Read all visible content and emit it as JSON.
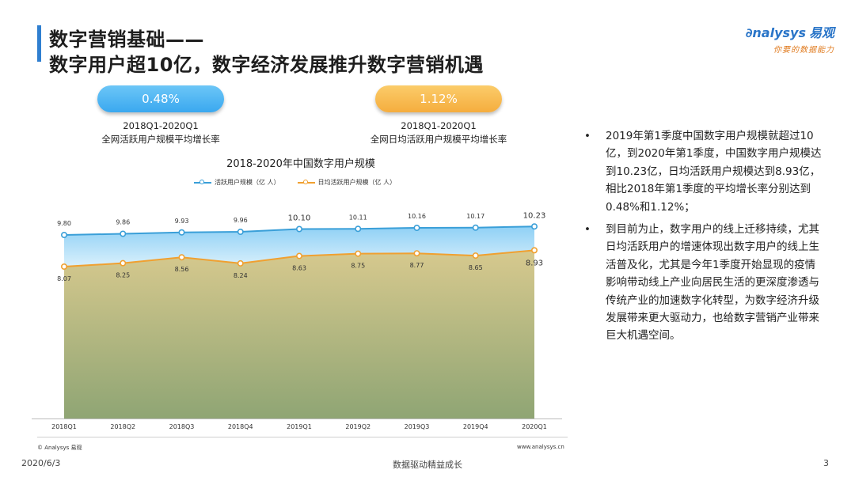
{
  "header": {
    "title_line1": "数字营销基础——",
    "title_line2": "数字用户超10亿，数字经济发展推升数字营销机遇"
  },
  "logo": {
    "brand": "nalysys",
    "brand_cn": "易观",
    "slogan": "你要的数据能力",
    "color": "#2a75c8"
  },
  "stats": [
    {
      "value": "0.48%",
      "period": "2018Q1-2020Q1",
      "desc": "全网活跃用户规模平均增长率",
      "color": "#3aa8ef"
    },
    {
      "value": "1.12%",
      "period": "2018Q1-2020Q1",
      "desc": "全网日均活跃用户规模平均增长率",
      "color": "#f5ad3e"
    }
  ],
  "chart_data": {
    "type": "line",
    "title": "2018-2020年中国数字用户规模",
    "categories": [
      "2018Q1",
      "2018Q2",
      "2018Q3",
      "2018Q4",
      "2019Q1",
      "2019Q2",
      "2019Q3",
      "2019Q4",
      "2020Q1"
    ],
    "series": [
      {
        "name": "活跃用户规模（亿 人）",
        "values": [
          9.8,
          9.86,
          9.93,
          9.96,
          10.1,
          10.11,
          10.16,
          10.17,
          10.23
        ],
        "labels": [
          "9.80",
          "9.86",
          "9.93",
          "9.96",
          "10.10",
          "10.11",
          "10.16",
          "10.17",
          "10.23"
        ],
        "color": "#3a9fd8"
      },
      {
        "name": "日均活跃用户规模（亿 人）",
        "values": [
          8.07,
          8.25,
          8.56,
          8.24,
          8.63,
          8.75,
          8.77,
          8.65,
          8.93
        ],
        "labels": [
          "8.07",
          "8.25",
          "8.56",
          "8.24",
          "8.63",
          "8.75",
          "8.77",
          "8.65",
          "8.93"
        ],
        "color": "#f0a030"
      }
    ],
    "legend_position": "top",
    "grid": false
  },
  "source": "© Analysys 易观",
  "website": "www.analysys.cn",
  "bullets": [
    "2019年第1季度中国数字用户规模就超过10亿，到2020年第1季度，中国数字用户规模达到10.23亿，日均活跃用户规模达到8.93亿，相比2018年第1季度的平均增长率分别达到0.48%和1.12%；",
    "到目前为止，数字用户的线上迁移持续，尤其日均活跃用户的增速体现出数字用户的线上生活普及化，尤其是今年1季度开始显现的疫情影响带动线上产业向居民生活的更深度渗透与传统产业的加速数字化转型，为数字经济升级发展带来更大驱动力，也给数字营销产业带来巨大机遇空间。"
  ],
  "footer": {
    "date": "2020/6/3",
    "tagline": "数据驱动精益成长",
    "page": "3"
  }
}
